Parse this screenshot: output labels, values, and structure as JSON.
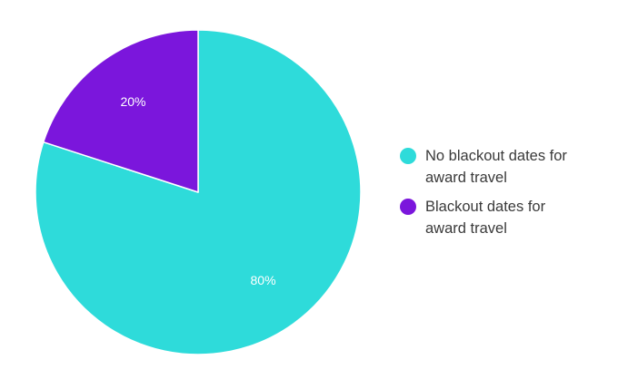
{
  "chart_data": {
    "type": "pie",
    "title": "",
    "legend_position": "right",
    "series": [
      {
        "name": "No blackout dates for\naward travel",
        "value": 80,
        "label": "80%",
        "color": "#2EDBDA"
      },
      {
        "name": "Blackout dates for\naward travel",
        "value": 20,
        "label": "20%",
        "color": "#7B16DC"
      }
    ]
  }
}
